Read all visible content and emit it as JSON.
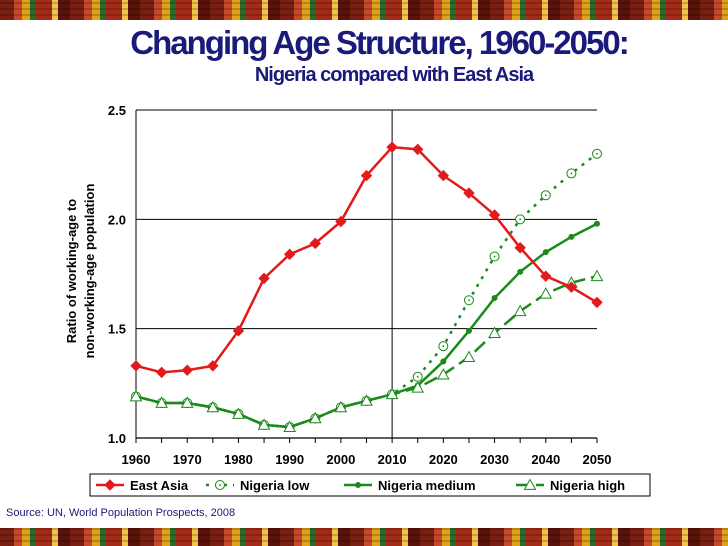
{
  "title": "Changing Age Structure, 1960-2050:",
  "subtitle": "Nigeria compared with East Asia",
  "source": "Source: UN, World Population Prospects, 2008",
  "chart_data": {
    "type": "line",
    "x": [
      1960,
      1965,
      1970,
      1975,
      1980,
      1985,
      1990,
      1995,
      2000,
      2005,
      2010,
      2015,
      2020,
      2025,
      2030,
      2035,
      2040,
      2045,
      2050
    ],
    "x_tick_labels": [
      "1960",
      "1970",
      "1980",
      "1990",
      "2000",
      "2010",
      "2020",
      "2030",
      "2040",
      "2050"
    ],
    "y_tick_labels": [
      "1.0",
      "1.5",
      "2.0",
      "2.5"
    ],
    "ylabel_line1": "Ratio of working-age to",
    "ylabel_line2": "non-working-age population",
    "xlim": [
      1960,
      2050
    ],
    "ylim": [
      1.0,
      2.5
    ],
    "grid": "horizontal",
    "vertical_marker_at": 2010,
    "legend_position": "bottom",
    "series": [
      {
        "name": "East Asia",
        "color": "#e31a1c",
        "marker": "diamond",
        "dash": "solid",
        "x": [
          1960,
          1965,
          1970,
          1975,
          1980,
          1985,
          1990,
          1995,
          2000,
          2005,
          2010,
          2015,
          2020,
          2025,
          2030,
          2035,
          2040,
          2045,
          2050
        ],
        "values": [
          1.33,
          1.3,
          1.31,
          1.33,
          1.49,
          1.73,
          1.84,
          1.89,
          1.99,
          2.2,
          2.33,
          2.32,
          2.2,
          2.12,
          2.02,
          1.87,
          1.74,
          1.69,
          1.62
        ]
      },
      {
        "name": "Nigeria low",
        "color": "#1a8a1a",
        "marker": "circle",
        "dash": "dotted",
        "x": [
          1960,
          1965,
          1970,
          1975,
          1980,
          1985,
          1990,
          1995,
          2000,
          2005,
          2010,
          2015,
          2020,
          2025,
          2030,
          2035,
          2040,
          2045,
          2050
        ],
        "values": [
          1.19,
          1.16,
          1.16,
          1.14,
          1.11,
          1.06,
          1.05,
          1.09,
          1.14,
          1.17,
          1.2,
          1.28,
          1.42,
          1.63,
          1.83,
          2.0,
          2.11,
          2.21,
          2.3
        ]
      },
      {
        "name": "Nigeria medium",
        "color": "#1a8a1a",
        "marker": "dot",
        "dash": "solid",
        "x": [
          1960,
          1965,
          1970,
          1975,
          1980,
          1985,
          1990,
          1995,
          2000,
          2005,
          2010,
          2015,
          2020,
          2025,
          2030,
          2035,
          2040,
          2045,
          2050
        ],
        "values": [
          1.19,
          1.16,
          1.16,
          1.14,
          1.11,
          1.06,
          1.05,
          1.09,
          1.14,
          1.17,
          1.2,
          1.24,
          1.35,
          1.49,
          1.64,
          1.76,
          1.85,
          1.92,
          1.98
        ]
      },
      {
        "name": "Nigeria high",
        "color": "#1a8a1a",
        "marker": "triangle",
        "dash": "dashed",
        "x": [
          1960,
          1965,
          1970,
          1975,
          1980,
          1985,
          1990,
          1995,
          2000,
          2005,
          2010,
          2015,
          2020,
          2025,
          2030,
          2035,
          2040,
          2045,
          2050
        ],
        "values": [
          1.19,
          1.16,
          1.16,
          1.14,
          1.11,
          1.06,
          1.05,
          1.09,
          1.14,
          1.17,
          1.2,
          1.23,
          1.29,
          1.37,
          1.48,
          1.58,
          1.66,
          1.71,
          1.74
        ]
      }
    ]
  }
}
